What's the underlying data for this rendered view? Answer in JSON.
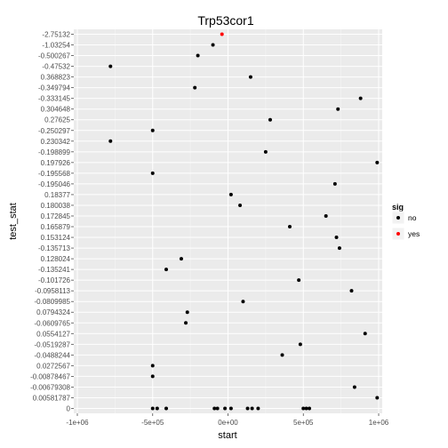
{
  "chart_data": {
    "type": "scatter",
    "title": "Trp53cor1",
    "xlabel": "start",
    "ylabel": "test_stat",
    "xlim": [
      -1000000,
      1000000
    ],
    "x_ticks": [
      -1000000,
      -500000,
      0,
      500000,
      1000000
    ],
    "x_tick_labels": [
      "-1e+06",
      "-5e+05",
      "0e+00",
      "5e+05",
      "1e+06"
    ],
    "y_categories": [
      "-2.75132",
      "-1.03254",
      "-0.500267",
      "-0.47532",
      "0.368823",
      "-0.349794",
      "-0.333145",
      "0.304648",
      "0.27625",
      "-0.250297",
      "0.230342",
      "-0.198899",
      "0.197926",
      "-0.195568",
      "-0.195046",
      "0.18377",
      "0.180038",
      "0.172845",
      "0.165879",
      "0.153124",
      "-0.135713",
      "0.128024",
      "-0.135241",
      "-0.101726",
      "-0.0958113",
      "-0.0809985",
      "0.0794324",
      "-0.0609765",
      "0.0554127",
      "-0.0519287",
      "-0.0488244",
      "0.0272567",
      "-0.00878467",
      "-0.00679308",
      "0.00581787",
      "0"
    ],
    "legend_title": "sig",
    "legend_position": "right",
    "grid": true,
    "series": [
      {
        "name": "no",
        "color": "#000000",
        "points": [
          {
            "x": -100000,
            "y": "-1.03254"
          },
          {
            "x": -200000,
            "y": "-0.500267"
          },
          {
            "x": -780000,
            "y": "-0.47532"
          },
          {
            "x": 150000,
            "y": "0.368823"
          },
          {
            "x": -220000,
            "y": "-0.349794"
          },
          {
            "x": 880000,
            "y": "-0.333145"
          },
          {
            "x": 730000,
            "y": "0.304648"
          },
          {
            "x": 280000,
            "y": "0.27625"
          },
          {
            "x": -500000,
            "y": "-0.250297"
          },
          {
            "x": -780000,
            "y": "0.230342"
          },
          {
            "x": 250000,
            "y": "-0.198899"
          },
          {
            "x": 990000,
            "y": "0.197926"
          },
          {
            "x": -500000,
            "y": "-0.195568"
          },
          {
            "x": 710000,
            "y": "-0.195046"
          },
          {
            "x": 20000,
            "y": "0.18377"
          },
          {
            "x": 80000,
            "y": "0.180038"
          },
          {
            "x": 650000,
            "y": "0.172845"
          },
          {
            "x": 410000,
            "y": "0.165879"
          },
          {
            "x": 720000,
            "y": "0.153124"
          },
          {
            "x": 740000,
            "y": "-0.135713"
          },
          {
            "x": -310000,
            "y": "0.128024"
          },
          {
            "x": -410000,
            "y": "-0.135241"
          },
          {
            "x": 470000,
            "y": "-0.101726"
          },
          {
            "x": 820000,
            "y": "-0.0958113"
          },
          {
            "x": 100000,
            "y": "-0.0809985"
          },
          {
            "x": -270000,
            "y": "0.0794324"
          },
          {
            "x": -280000,
            "y": "-0.0609765"
          },
          {
            "x": 910000,
            "y": "0.0554127"
          },
          {
            "x": 480000,
            "y": "-0.0519287"
          },
          {
            "x": 360000,
            "y": "-0.0488244"
          },
          {
            "x": -500000,
            "y": "0.0272567"
          },
          {
            "x": -500000,
            "y": "-0.00878467"
          },
          {
            "x": 840000,
            "y": "-0.00679308"
          },
          {
            "x": 990000,
            "y": "0.00581787"
          },
          {
            "x": -500000,
            "y": "0"
          },
          {
            "x": -470000,
            "y": "0"
          },
          {
            "x": -410000,
            "y": "0"
          },
          {
            "x": -90000,
            "y": "0"
          },
          {
            "x": -70000,
            "y": "0"
          },
          {
            "x": -20000,
            "y": "0"
          },
          {
            "x": 20000,
            "y": "0"
          },
          {
            "x": 130000,
            "y": "0"
          },
          {
            "x": 160000,
            "y": "0"
          },
          {
            "x": 200000,
            "y": "0"
          },
          {
            "x": 500000,
            "y": "0"
          },
          {
            "x": 520000,
            "y": "0"
          },
          {
            "x": 540000,
            "y": "0"
          }
        ]
      },
      {
        "name": "yes",
        "color": "#ff0000",
        "points": [
          {
            "x": -40000,
            "y": "-2.75132"
          }
        ]
      }
    ]
  }
}
